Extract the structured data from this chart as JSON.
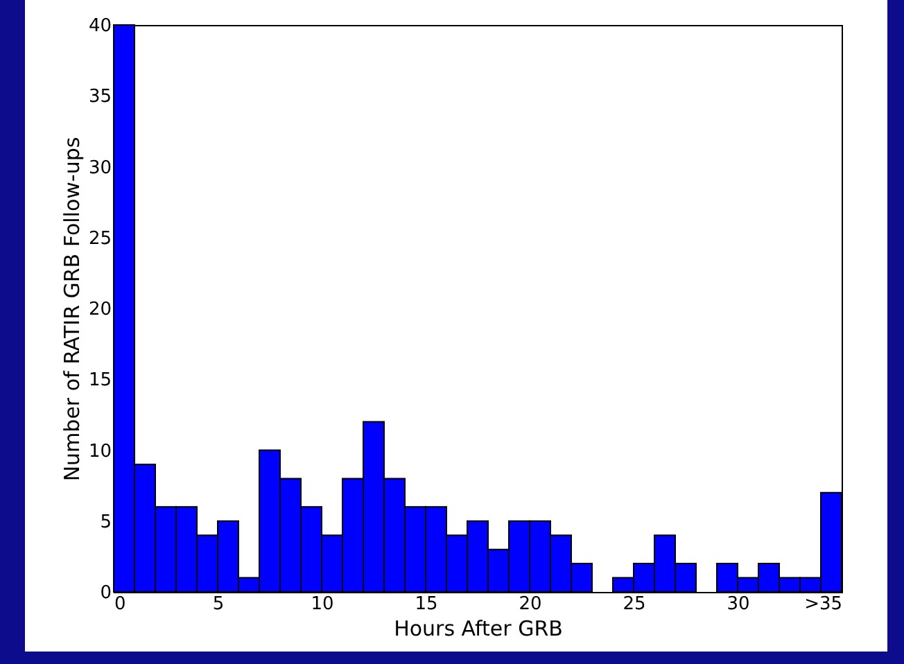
{
  "chart_data": {
    "type": "histogram",
    "xlabel": "Hours After GRB",
    "ylabel": "Number of RATIR GRB Follow-ups",
    "bins": [
      0,
      1,
      2,
      3,
      4,
      5,
      6,
      7,
      8,
      9,
      10,
      11,
      12,
      13,
      14,
      15,
      16,
      17,
      18,
      19,
      20,
      21,
      22,
      23,
      24,
      25,
      26,
      27,
      28,
      29,
      30,
      31,
      32,
      33,
      34,
      35
    ],
    "values": [
      40,
      9,
      6,
      6,
      4,
      5,
      1,
      10,
      8,
      6,
      4,
      8,
      12,
      8,
      6,
      6,
      4,
      5,
      3,
      5,
      5,
      4,
      2,
      0,
      1,
      2,
      4,
      2,
      0,
      2,
      1,
      2,
      1,
      1,
      7
    ],
    "color": "#0000ff",
    "xlim": [
      0,
      35
    ],
    "xticks": [
      0,
      5,
      10,
      15,
      20,
      25,
      30,
      {
        "value": 35,
        "label": ">35"
      }
    ],
    "ylim": [
      0,
      40
    ],
    "yticks": [
      0,
      5,
      10,
      15,
      20,
      25,
      30,
      35,
      40
    ],
    "grid": false
  }
}
